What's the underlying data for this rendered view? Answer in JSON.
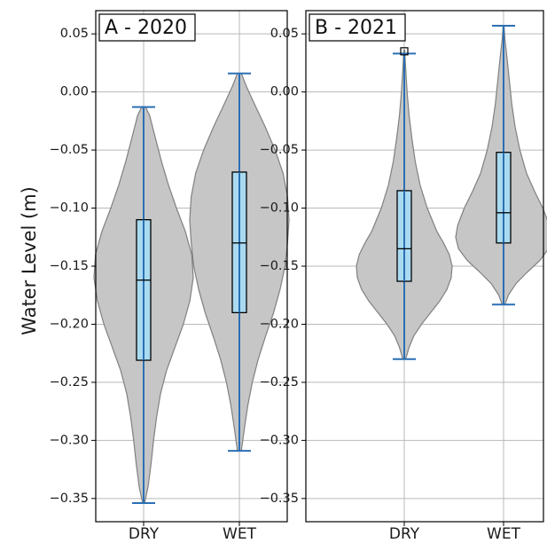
{
  "chart_data": [
    {
      "type": "violin",
      "title": "A - 2020",
      "ylabel": "Water Level (m)",
      "xlabel": "",
      "categories": [
        "DRY",
        "WET"
      ],
      "ylim": [
        -0.37,
        0.07
      ],
      "yticks": [
        0.05,
        0.0,
        -0.05,
        -0.1,
        -0.15,
        -0.2,
        -0.25,
        -0.3,
        -0.35
      ],
      "ytick_labels": [
        "0.05",
        "0.00",
        "−0.05",
        "−0.10",
        "−0.15",
        "−0.20",
        "−0.25",
        "−0.30",
        "−0.35"
      ],
      "grid": true,
      "series": [
        {
          "category": "DRY",
          "min": -0.354,
          "q1": -0.231,
          "median": -0.162,
          "q3": -0.11,
          "max": -0.013,
          "density": [
            [
              -0.354,
              0.02
            ],
            [
              -0.34,
              0.09
            ],
            [
              -0.32,
              0.15
            ],
            [
              -0.3,
              0.2
            ],
            [
              -0.28,
              0.26
            ],
            [
              -0.26,
              0.34
            ],
            [
              -0.24,
              0.46
            ],
            [
              -0.22,
              0.63
            ],
            [
              -0.2,
              0.8
            ],
            [
              -0.18,
              0.93
            ],
            [
              -0.16,
              1.0
            ],
            [
              -0.14,
              0.97
            ],
            [
              -0.12,
              0.84
            ],
            [
              -0.1,
              0.66
            ],
            [
              -0.08,
              0.5
            ],
            [
              -0.06,
              0.36
            ],
            [
              -0.04,
              0.24
            ],
            [
              -0.02,
              0.12
            ],
            [
              -0.013,
              0.04
            ]
          ]
        },
        {
          "category": "WET",
          "min": -0.309,
          "q1": -0.19,
          "median": -0.13,
          "q3": -0.069,
          "max": 0.016,
          "density": [
            [
              -0.309,
              0.04
            ],
            [
              -0.29,
              0.1
            ],
            [
              -0.27,
              0.17
            ],
            [
              -0.25,
              0.26
            ],
            [
              -0.23,
              0.38
            ],
            [
              -0.21,
              0.53
            ],
            [
              -0.19,
              0.69
            ],
            [
              -0.17,
              0.82
            ],
            [
              -0.15,
              0.92
            ],
            [
              -0.13,
              0.97
            ],
            [
              -0.11,
              1.0
            ],
            [
              -0.09,
              0.97
            ],
            [
              -0.07,
              0.88
            ],
            [
              -0.05,
              0.72
            ],
            [
              -0.03,
              0.52
            ],
            [
              -0.01,
              0.3
            ],
            [
              0.005,
              0.14
            ],
            [
              0.016,
              0.04
            ]
          ]
        }
      ]
    },
    {
      "type": "violin",
      "title": "B - 2021",
      "ylabel": "",
      "xlabel": "",
      "categories": [
        "DRY",
        "WET"
      ],
      "ylim": [
        -0.37,
        0.07
      ],
      "yticks": [
        0.05,
        0.0,
        -0.05,
        -0.1,
        -0.15,
        -0.2,
        -0.25,
        -0.3,
        -0.35
      ],
      "ytick_labels": [
        "0.05",
        "0.00",
        "−0.05",
        "−0.10",
        "−0.15",
        "−0.20",
        "−0.25",
        "−0.30",
        "−0.35"
      ],
      "grid": true,
      "series": [
        {
          "category": "DRY",
          "min": -0.23,
          "q1": -0.163,
          "median": -0.135,
          "q3": -0.085,
          "max": 0.033,
          "outliers": [
            0.035
          ],
          "density": [
            [
              -0.23,
              0.03
            ],
            [
              -0.22,
              0.1
            ],
            [
              -0.21,
              0.2
            ],
            [
              -0.2,
              0.36
            ],
            [
              -0.19,
              0.55
            ],
            [
              -0.18,
              0.74
            ],
            [
              -0.17,
              0.89
            ],
            [
              -0.16,
              0.98
            ],
            [
              -0.15,
              1.0
            ],
            [
              -0.14,
              0.94
            ],
            [
              -0.13,
              0.82
            ],
            [
              -0.12,
              0.68
            ],
            [
              -0.1,
              0.48
            ],
            [
              -0.08,
              0.33
            ],
            [
              -0.06,
              0.23
            ],
            [
              -0.04,
              0.16
            ],
            [
              -0.02,
              0.1
            ],
            [
              0.0,
              0.06
            ],
            [
              0.02,
              0.03
            ],
            [
              0.036,
              0.01
            ]
          ]
        },
        {
          "category": "WET",
          "min": -0.183,
          "q1": -0.13,
          "median": -0.104,
          "q3": -0.052,
          "max": 0.057,
          "density": [
            [
              -0.183,
              0.03
            ],
            [
              -0.175,
              0.1
            ],
            [
              -0.165,
              0.26
            ],
            [
              -0.155,
              0.5
            ],
            [
              -0.145,
              0.76
            ],
            [
              -0.135,
              0.94
            ],
            [
              -0.125,
              1.0
            ],
            [
              -0.115,
              0.96
            ],
            [
              -0.1,
              0.82
            ],
            [
              -0.085,
              0.64
            ],
            [
              -0.07,
              0.48
            ],
            [
              -0.05,
              0.34
            ],
            [
              -0.03,
              0.24
            ],
            [
              -0.01,
              0.17
            ],
            [
              0.01,
              0.12
            ],
            [
              0.03,
              0.07
            ],
            [
              0.045,
              0.03
            ],
            [
              0.057,
              0.01
            ]
          ]
        }
      ]
    }
  ],
  "colors": {
    "violin_fill": "#c6c6c6",
    "violin_edge": "#808080",
    "whisker": "#2b6fb4",
    "box_fill": "#a9daf0",
    "box_edge": "#000000",
    "grid": "#b9b9b9"
  }
}
